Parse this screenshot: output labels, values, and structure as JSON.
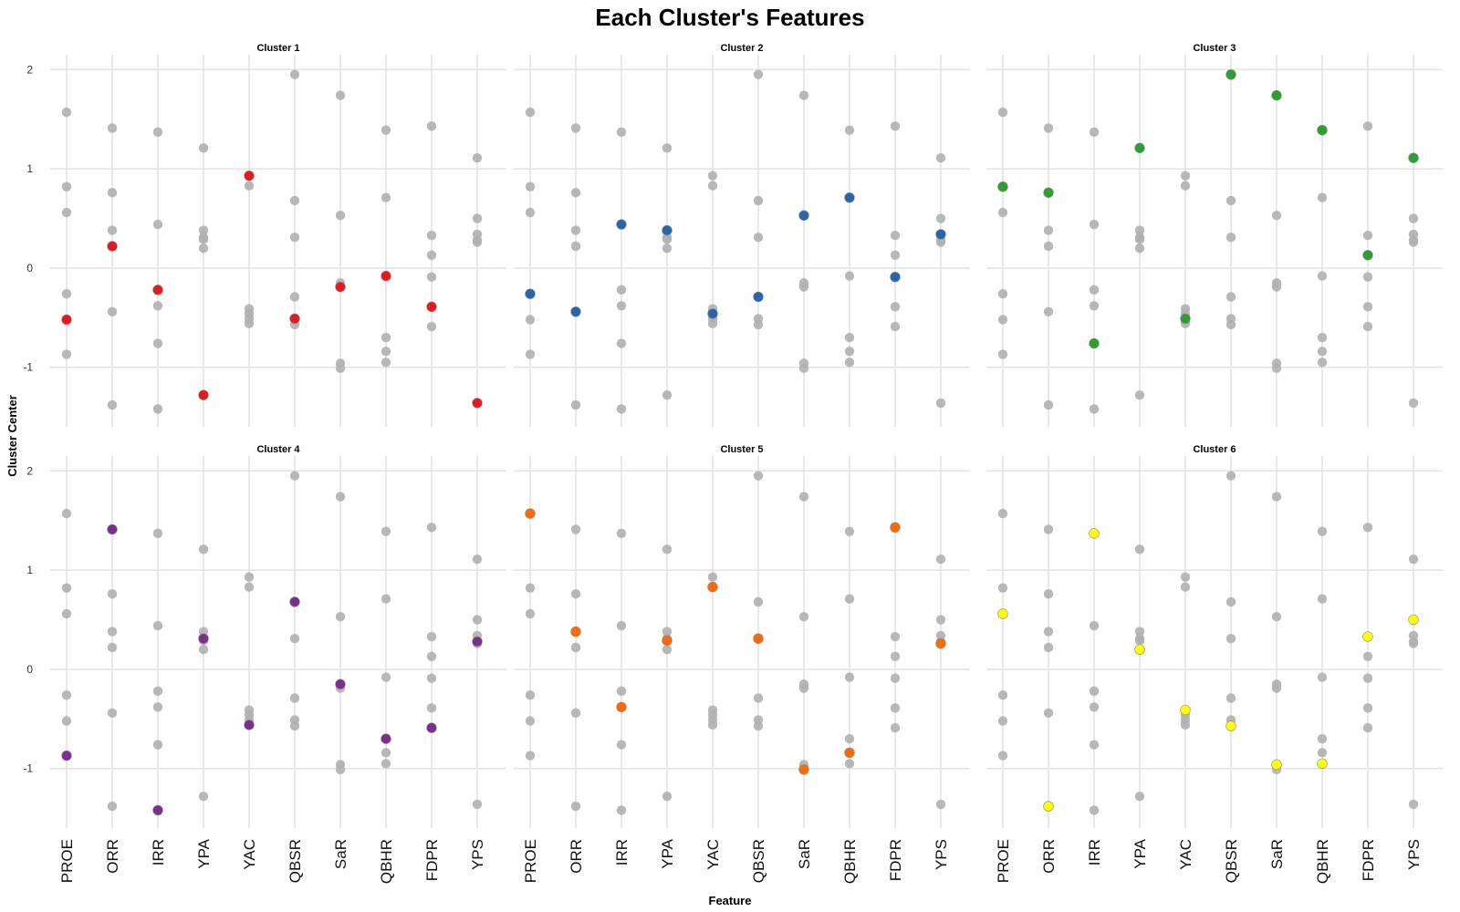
{
  "chart_data": {
    "type": "scatter",
    "title": "Each Cluster's Features",
    "xlabel": "Feature",
    "ylabel": "Cluster Center",
    "features": [
      "PROE",
      "ORR",
      "IRR",
      "YPA",
      "YAC",
      "QBSR",
      "SaR",
      "QBHR",
      "FDPR",
      "YPS"
    ],
    "ylim": [
      -1.6,
      2.15
    ],
    "yticks": [
      -1,
      0,
      1,
      2
    ],
    "grid": true,
    "legend": "none",
    "background_point_color": "#b0b0b0",
    "panels": [
      {
        "title": "Cluster 1",
        "color": "#e41a1c",
        "values": [
          -0.52,
          0.22,
          -0.22,
          -1.28,
          0.93,
          -0.51,
          -0.19,
          -0.08,
          -0.39,
          -1.36
        ]
      },
      {
        "title": "Cluster 2",
        "color": "#2866ac",
        "values": [
          -0.26,
          -0.44,
          0.44,
          0.38,
          -0.46,
          -0.29,
          0.53,
          0.71,
          -0.09,
          0.34
        ]
      },
      {
        "title": "Cluster 3",
        "color": "#2ca02c",
        "values": [
          0.82,
          0.76,
          -0.76,
          1.21,
          -0.51,
          1.95,
          1.74,
          1.39,
          0.13,
          1.11
        ]
      },
      {
        "title": "Cluster 4",
        "color": "#7b2d90",
        "values": [
          -0.87,
          1.41,
          -1.42,
          0.31,
          -0.56,
          0.68,
          -0.15,
          -0.7,
          -0.59,
          0.28
        ]
      },
      {
        "title": "Cluster 5",
        "color": "#ff6a00",
        "values": [
          1.57,
          0.38,
          -0.38,
          0.29,
          0.83,
          0.31,
          -1.01,
          -0.84,
          1.43,
          0.26
        ]
      },
      {
        "title": "Cluster 6",
        "color": "#ffff00",
        "values": [
          0.56,
          -1.38,
          1.37,
          0.2,
          -0.41,
          -0.57,
          -0.96,
          -0.95,
          0.33,
          0.5
        ]
      }
    ]
  }
}
